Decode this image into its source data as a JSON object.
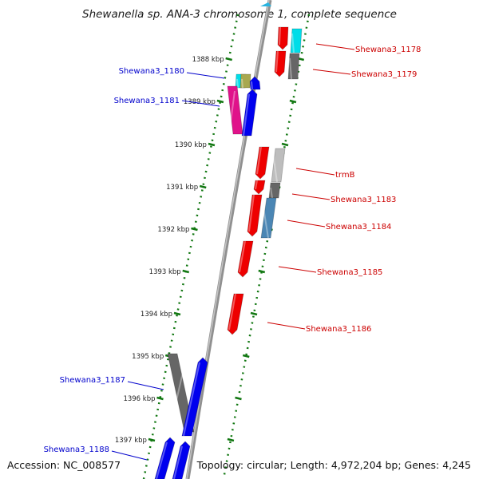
{
  "title": "Shewanella sp. ANA-3 chromosome 1, complete sequence",
  "footer": {
    "accession": "Accession: NC_008577",
    "summary": "Topology: circular; Length: 4,972,204 bp; Genes: 4,245"
  },
  "ticks": [
    "1388 kbp",
    "1389 kbp",
    "1390 kbp",
    "1391 kbp",
    "1392 kbp",
    "1393 kbp",
    "1394 kbp",
    "1395 kbp",
    "1396 kbp",
    "1397 kbp"
  ],
  "genes_forward": [
    "Shewana3_1178",
    "Shewana3_1179",
    "trmB",
    "Shewana3_1183",
    "Shewana3_1184",
    "Shewana3_1185",
    "Shewana3_1186"
  ],
  "genes_reverse": [
    "Shewana3_1180",
    "Shewana3_1181",
    "Shewana3_1187",
    "Shewana3_1188"
  ],
  "colors": {
    "forward_label": "#cc0000",
    "reverse_label": "#0000cc",
    "forward_gene": "#ee0000",
    "reverse_gene": "#0000ee",
    "magenta_gene": "#e0128a",
    "cyan_gene": "#00dde8",
    "dark_gray_gene": "#666666",
    "light_gray_gene": "#bdbdbd",
    "steel_blue_gene": "#4b86b4",
    "olive_gene": "#a8a84e",
    "backbone": "#909090",
    "tick_green": "#117711"
  }
}
